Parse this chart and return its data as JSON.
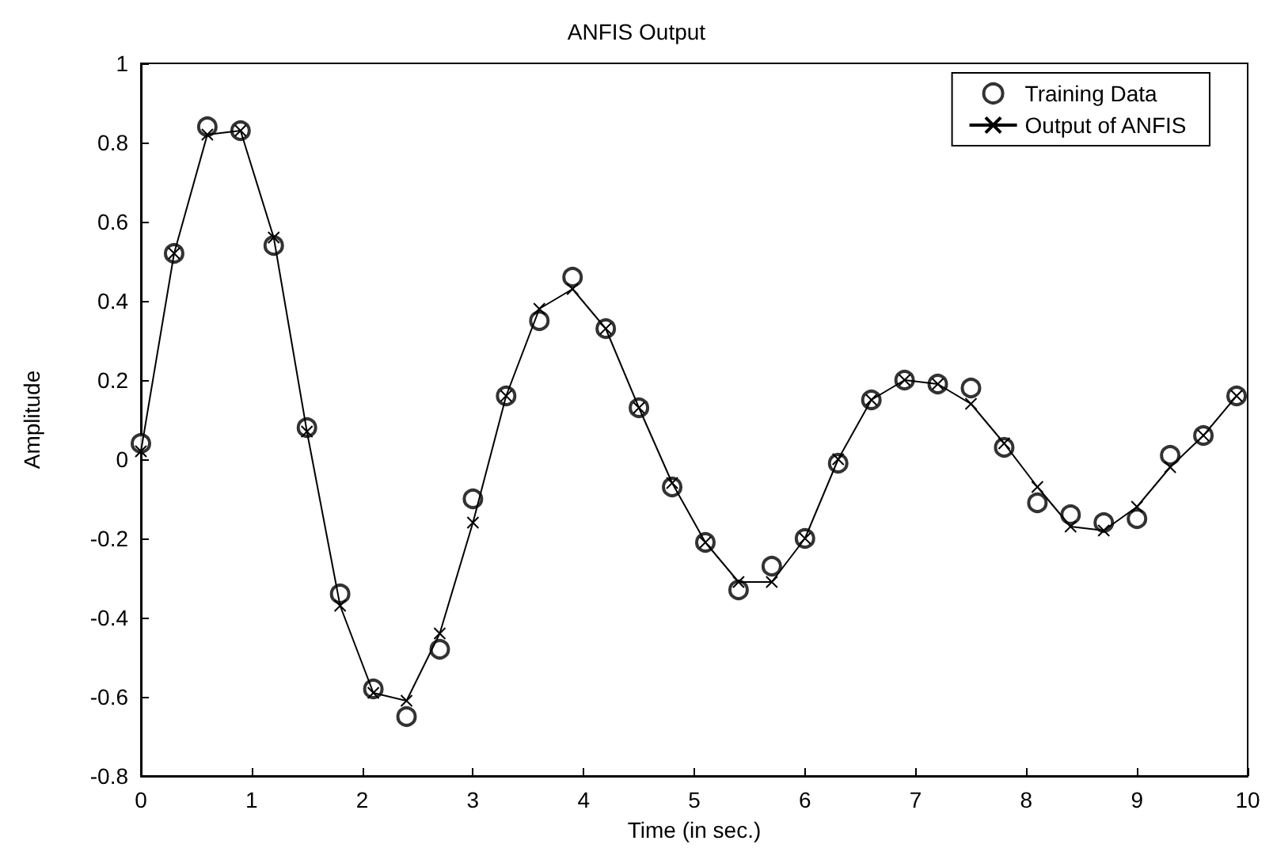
{
  "chart_data": {
    "type": "line",
    "title": "ANFIS Output",
    "xlabel": "Time (in sec.)",
    "ylabel": "Amplitude",
    "x": [
      0,
      0.3,
      0.6,
      0.9,
      1.2,
      1.5,
      1.8,
      2.1,
      2.4,
      2.7,
      3.0,
      3.3,
      3.6,
      3.9,
      4.2,
      4.5,
      4.8,
      5.1,
      5.4,
      5.7,
      6.0,
      6.3,
      6.6,
      6.9,
      7.2,
      7.5,
      7.8,
      8.1,
      8.4,
      8.7,
      9.0,
      9.3,
      9.6,
      9.9
    ],
    "series": [
      {
        "name": "Training Data",
        "type": "scatter",
        "marker": "circle",
        "color": "#000000",
        "values": [
          0.04,
          0.52,
          0.84,
          0.83,
          0.54,
          0.08,
          -0.34,
          -0.58,
          -0.65,
          -0.48,
          -0.1,
          0.16,
          0.35,
          0.46,
          0.33,
          0.13,
          -0.07,
          -0.21,
          -0.33,
          -0.27,
          -0.2,
          -0.01,
          0.15,
          0.2,
          0.19,
          0.18,
          0.03,
          -0.11,
          -0.14,
          -0.16,
          -0.15,
          0.01,
          0.06,
          0.16
        ]
      },
      {
        "name": "Output of ANFIS",
        "marker": "cross",
        "line_style": "solid",
        "color": "#000000",
        "values": [
          0.02,
          0.52,
          0.82,
          0.83,
          0.56,
          0.07,
          -0.37,
          -0.59,
          -0.61,
          -0.44,
          -0.16,
          0.16,
          0.38,
          0.43,
          0.33,
          0.13,
          -0.06,
          -0.21,
          -0.31,
          -0.31,
          -0.2,
          0.0,
          0.15,
          0.2,
          0.19,
          0.14,
          0.04,
          -0.07,
          -0.17,
          -0.18,
          -0.12,
          -0.02,
          0.06,
          0.16
        ]
      }
    ],
    "xlim": [
      0,
      10
    ],
    "xticks": [
      0,
      1,
      2,
      3,
      4,
      5,
      6,
      7,
      8,
      9,
      10
    ],
    "ylim": [
      -0.8,
      1
    ],
    "yticks": [
      -0.8,
      -0.6,
      -0.4,
      -0.2,
      0,
      0.2,
      0.4,
      0.6,
      0.8,
      1
    ],
    "grid": false,
    "legend": "top right"
  }
}
